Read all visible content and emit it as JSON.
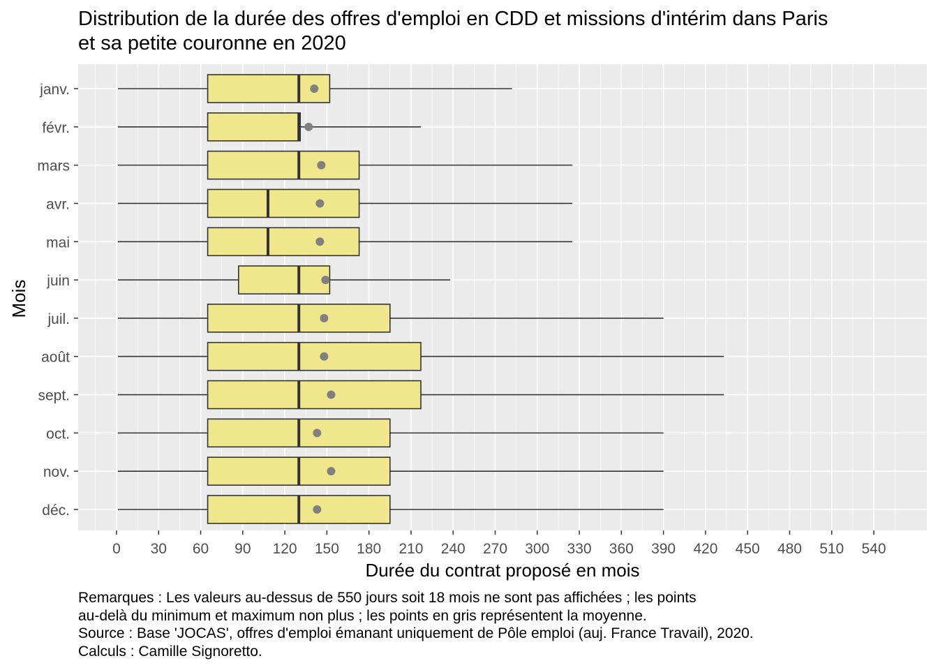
{
  "chart_data": {
    "type": "box",
    "title_lines": [
      "Distribution de la durée des offres d'emploi en CDD et missions d'intérim dans Paris",
      "et sa petite couronne en 2020"
    ],
    "xlabel": "Durée du contrat proposé en mois",
    "ylabel": "Mois",
    "xlim": [
      -18,
      578
    ],
    "xticks": [
      0,
      30,
      60,
      90,
      120,
      150,
      180,
      210,
      240,
      270,
      300,
      330,
      360,
      390,
      420,
      450,
      480,
      510,
      540
    ],
    "grid": true,
    "colors": {
      "box_fill": "#F0E68C",
      "box_line": "#333333",
      "mean": "#808080",
      "panel": "#EBEBEB",
      "grid": "#FFFFFF"
    },
    "categories": [
      "janv.",
      "févr.",
      "mars",
      "avr.",
      "mai",
      "juin",
      "juil.",
      "août",
      "sept.",
      "oct.",
      "nov.",
      "déc."
    ],
    "series": [
      {
        "name": "janv.",
        "min": 1,
        "q1": 65,
        "median": 130,
        "q3": 152,
        "max": 282,
        "mean": 141
      },
      {
        "name": "févr.",
        "min": 1,
        "q1": 65,
        "median": 130,
        "q3": 131,
        "max": 217,
        "mean": 137
      },
      {
        "name": "mars",
        "min": 1,
        "q1": 65,
        "median": 130,
        "q3": 173,
        "max": 325,
        "mean": 146
      },
      {
        "name": "avr.",
        "min": 1,
        "q1": 65,
        "median": 108,
        "q3": 173,
        "max": 325,
        "mean": 145
      },
      {
        "name": "mai",
        "min": 1,
        "q1": 65,
        "median": 108,
        "q3": 173,
        "max": 325,
        "mean": 145
      },
      {
        "name": "juin",
        "min": 1,
        "q1": 87,
        "median": 130,
        "q3": 152,
        "max": 238,
        "mean": 149
      },
      {
        "name": "juil.",
        "min": 1,
        "q1": 65,
        "median": 130,
        "q3": 195,
        "max": 390,
        "mean": 148
      },
      {
        "name": "août",
        "min": 1,
        "q1": 65,
        "median": 130,
        "q3": 217,
        "max": 433,
        "mean": 148
      },
      {
        "name": "sept.",
        "min": 1,
        "q1": 65,
        "median": 130,
        "q3": 217,
        "max": 433,
        "mean": 153
      },
      {
        "name": "oct.",
        "min": 1,
        "q1": 65,
        "median": 130,
        "q3": 195,
        "max": 390,
        "mean": 143
      },
      {
        "name": "nov.",
        "min": 1,
        "q1": 65,
        "median": 130,
        "q3": 195,
        "max": 390,
        "mean": 153
      },
      {
        "name": "déc.",
        "min": 1,
        "q1": 65,
        "median": 130,
        "q3": 195,
        "max": 390,
        "mean": 143
      }
    ]
  },
  "notes": [
    "Remarques : Les valeurs au-dessus de 550 jours soit 18 mois ne sont pas affichées ; les points",
    "au-delà du minimum et maximum non plus ; les points en gris représentent la moyenne.",
    "Source : Base 'JOCAS', offres d'emploi émanant uniquement de Pôle emploi (auj. France Travail), 2020.",
    "Calculs : Camille Signoretto."
  ]
}
